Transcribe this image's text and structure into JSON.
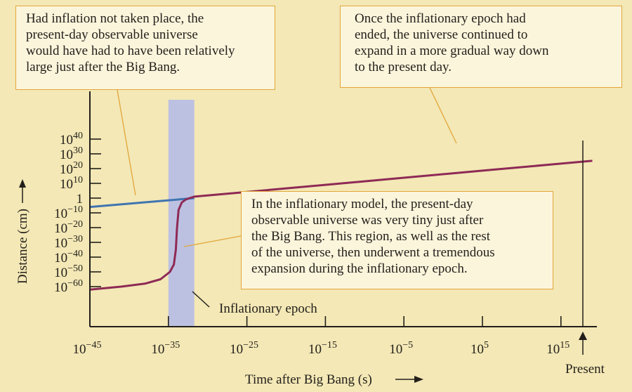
{
  "chart_data": {
    "type": "line",
    "title": "",
    "xlabel": "Time after Big Bang (s)",
    "ylabel": "Distance (cm)",
    "x_scale": "log",
    "y_scale": "log",
    "x_ticks": [
      {
        "base": "10",
        "exp": "−45",
        "value": -45
      },
      {
        "base": "10",
        "exp": "−35",
        "value": -35
      },
      {
        "base": "10",
        "exp": "−25",
        "value": -25
      },
      {
        "base": "10",
        "exp": "−15",
        "value": -15
      },
      {
        "base": "10",
        "exp": "−5",
        "value": -5
      },
      {
        "base": "10",
        "exp": "5",
        "value": 5
      },
      {
        "base": "10",
        "exp": "15",
        "value": 15
      }
    ],
    "y_ticks": [
      {
        "base": "10",
        "exp": "40",
        "value": 40
      },
      {
        "base": "10",
        "exp": "30",
        "value": 30
      },
      {
        "base": "10",
        "exp": "20",
        "value": 20
      },
      {
        "base": "10",
        "exp": "10",
        "value": 10
      },
      {
        "base": "1",
        "exp": "",
        "value": 0
      },
      {
        "base": "10",
        "exp": "−10",
        "value": -10
      },
      {
        "base": "10",
        "exp": "−20",
        "value": -20
      },
      {
        "base": "10",
        "exp": "−30",
        "value": -30
      },
      {
        "base": "10",
        "exp": "−40",
        "value": -40
      },
      {
        "base": "10",
        "exp": "−50",
        "value": -50
      },
      {
        "base": "10",
        "exp": "−60",
        "value": -60
      }
    ],
    "present_label": "Present",
    "present_x": 17.6,
    "inflationary_epoch": {
      "label": "Inflationary epoch",
      "x_start": -35,
      "x_end": -31.7
    },
    "series": [
      {
        "color": "#3f74b0",
        "x": [
          -45,
          -31.7
        ],
        "y": [
          -6,
          0
        ]
      },
      {
        "color": "#8e2a55",
        "x": [
          -45,
          -41,
          -38,
          -36,
          -34.8,
          -34.3,
          -34.05,
          -33.9,
          -33.7,
          -33.3,
          -32.8,
          -32.3,
          -31.7,
          -25,
          -15,
          -5,
          5,
          15,
          17.6,
          19
        ],
        "y": [
          -62,
          -60,
          -58,
          -55,
          -50,
          -45,
          -35,
          -20,
          -8,
          -3,
          -1,
          0,
          1,
          4.2,
          9,
          13.8,
          18.6,
          23.4,
          24.6,
          25.3
        ]
      }
    ]
  },
  "callouts": {
    "no_inflation": [
      "Had inflation not taken place, the",
      "present-day observable universe",
      "would have had to have been relatively",
      "large just after the Big Bang."
    ],
    "after_epoch": [
      "Once the inflationary epoch had",
      "ended, the universe continued to",
      "expand in a more gradual way down",
      "to the present day."
    ],
    "inflationary_model": [
      "In the inflationary model, the present-day",
      "observable universe was very tiny just after",
      "the Big Bang. This region, as well as the rest",
      "of the universe, then underwent a tremendous",
      "expansion during the inflationary epoch."
    ]
  },
  "colors": {
    "background": "#f3e8b6",
    "callout_border": "#e3a63a",
    "epoch_band": "#b7bde6",
    "axis": "#231f1a"
  }
}
